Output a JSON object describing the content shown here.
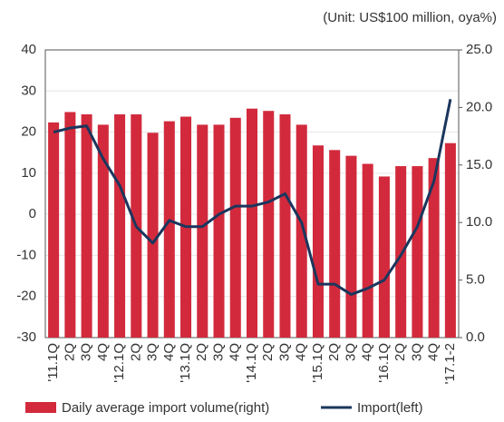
{
  "chart_data": {
    "type": "bar_line",
    "subtitle": "(Unit: US$100 million, oya%)",
    "categories": [
      "'11.1Q",
      "2Q",
      "3Q",
      "4Q",
      "'12.1Q",
      "2Q",
      "3Q",
      "4Q",
      "'13.1Q",
      "2Q",
      "3Q",
      "4Q",
      "'14.1Q",
      "2Q",
      "3Q",
      "4Q",
      "'15.1Q",
      "2Q",
      "3Q",
      "4Q",
      "'16.1Q",
      "2Q",
      "3Q",
      "4Q",
      "'17.1-2"
    ],
    "series": [
      {
        "name": "Daily average import volume(right)",
        "type": "bar",
        "axis": "y2",
        "color": "#d22a3c",
        "values": [
          18.7,
          19.6,
          19.4,
          18.5,
          19.4,
          19.4,
          17.8,
          18.8,
          19.2,
          18.5,
          18.5,
          19.1,
          19.9,
          19.7,
          19.4,
          18.5,
          16.7,
          16.3,
          15.8,
          15.1,
          14.0,
          14.9,
          14.9,
          15.6,
          16.9
        ]
      },
      {
        "name": "Import(left)",
        "type": "line",
        "axis": "y",
        "color": "#1b365d",
        "values": [
          20,
          21,
          21.5,
          13.5,
          7,
          -3,
          -7,
          -1.5,
          -3,
          -3,
          0,
          2,
          2,
          3,
          5,
          -2,
          -17,
          -17,
          -19.5,
          -18,
          -16,
          -10,
          -3,
          8,
          28
        ]
      }
    ],
    "ylim": [
      -30,
      40
    ],
    "yticks": [
      -30,
      -20,
      -10,
      0,
      10,
      20,
      30,
      40
    ],
    "y2lim": [
      0,
      25
    ],
    "y2ticks": [
      {
        "value": 0,
        "label": "0.0"
      },
      {
        "value": 5,
        "label": "5.0"
      },
      {
        "value": 10,
        "label": "10.0"
      },
      {
        "value": 15,
        "label": "15.0"
      },
      {
        "value": 20,
        "label": "20.0"
      },
      {
        "value": 25,
        "label": "25.0"
      }
    ],
    "grid": true,
    "legend": "bottom"
  }
}
